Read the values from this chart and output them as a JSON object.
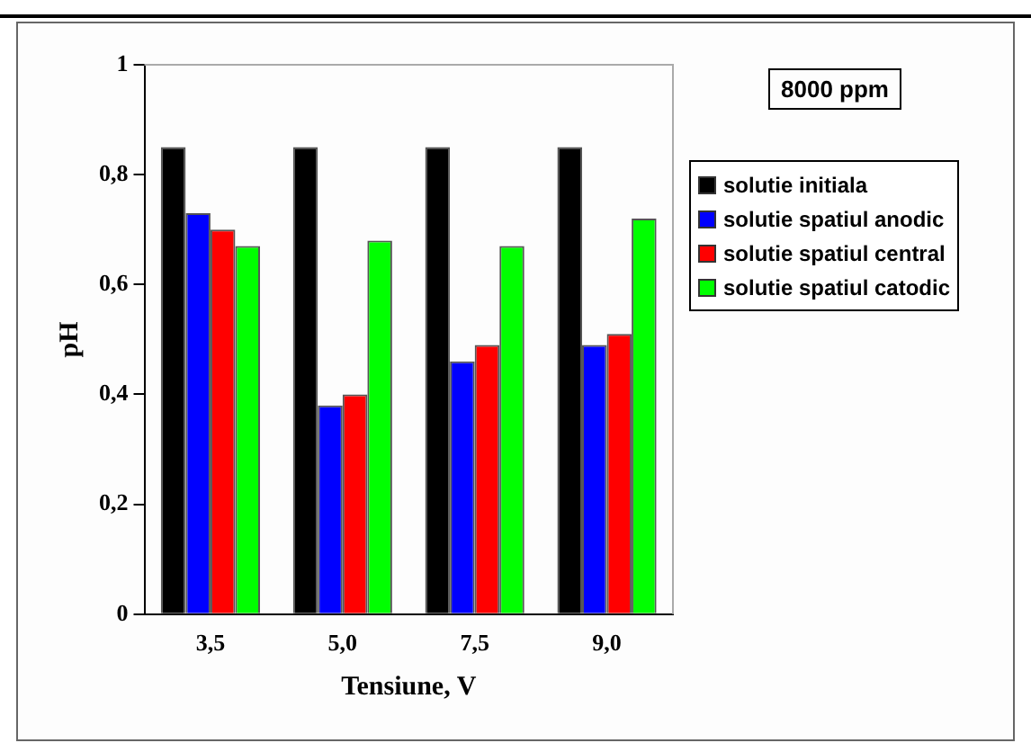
{
  "chart_data": {
    "type": "bar",
    "xlabel": "Tensiune, V",
    "ylabel": "pH",
    "categories": [
      "3,5",
      "5,0",
      "7,5",
      "9,0"
    ],
    "series": [
      {
        "name": "solutie initiala",
        "color": "#000000",
        "values": [
          0.85,
          0.85,
          0.85,
          0.85
        ]
      },
      {
        "name": "solutie spatiul anodic",
        "color": "#0000ff",
        "values": [
          0.73,
          0.38,
          0.46,
          0.49
        ]
      },
      {
        "name": "solutie spatiul central",
        "color": "#ff0000",
        "values": [
          0.7,
          0.4,
          0.49,
          0.51
        ]
      },
      {
        "name": "solutie spatiul catodic",
        "color": "#00ff00",
        "values": [
          0.67,
          0.68,
          0.67,
          0.72
        ]
      }
    ],
    "ylim": [
      0,
      1
    ],
    "yticks": [
      0,
      {
        "value": 0.2,
        "label": "0,2"
      },
      {
        "value": 0.4,
        "label": "0,4"
      },
      {
        "value": 0.6,
        "label": "0,6"
      },
      {
        "value": 0.8,
        "label": "0,8"
      },
      1
    ],
    "grid": false,
    "legend": "right",
    "annotations": [
      "8000 ppm"
    ]
  }
}
